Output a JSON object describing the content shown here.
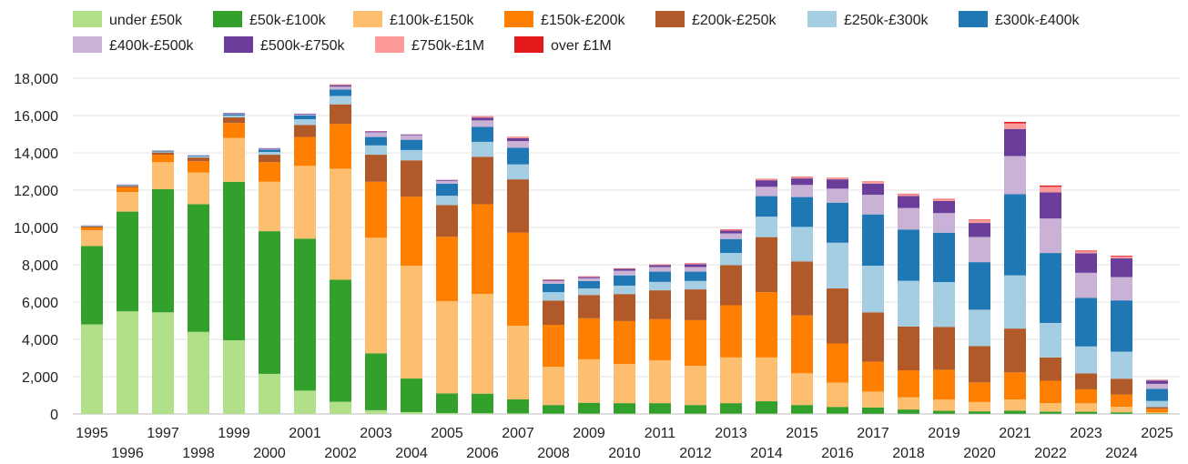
{
  "chart_data": {
    "type": "bar",
    "stacked": true,
    "title": "",
    "xlabel": "",
    "ylabel": "",
    "ylim": [
      0,
      18000
    ],
    "y_ticks": [
      0,
      2000,
      4000,
      6000,
      8000,
      10000,
      12000,
      14000,
      16000,
      18000
    ],
    "y_tick_labels": [
      "0",
      "2,000",
      "4,000",
      "6,000",
      "8,000",
      "10,000",
      "12,000",
      "14,000",
      "16,000",
      "18,000"
    ],
    "grid": true,
    "legend_position": "top-left",
    "categories": [
      "1995",
      "1996",
      "1997",
      "1998",
      "1999",
      "2000",
      "2001",
      "2002",
      "2003",
      "2004",
      "2005",
      "2006",
      "2007",
      "2008",
      "2009",
      "2010",
      "2011",
      "2012",
      "2013",
      "2014",
      "2015",
      "2016",
      "2017",
      "2018",
      "2019",
      "2020",
      "2021",
      "2022",
      "2023",
      "2024",
      "2025"
    ],
    "series": [
      {
        "name": "under £50k",
        "color": "#b2df8a",
        "values": [
          4800,
          5500,
          5450,
          4400,
          3950,
          2150,
          1250,
          650,
          200,
          100,
          50,
          40,
          30,
          20,
          20,
          20,
          20,
          20,
          20,
          20,
          20,
          20,
          10,
          10,
          10,
          10,
          10,
          10,
          10,
          10,
          5
        ]
      },
      {
        "name": "£50k-£100k",
        "color": "#33a02c",
        "values": [
          4200,
          5350,
          6600,
          6850,
          8500,
          7650,
          8150,
          6550,
          3050,
          1800,
          1050,
          1050,
          750,
          460,
          580,
          560,
          560,
          460,
          560,
          660,
          460,
          360,
          340,
          230,
          160,
          130,
          170,
          120,
          110,
          80,
          30
        ]
      },
      {
        "name": "£100k-£150k",
        "color": "#fdbf6f",
        "values": [
          850,
          1050,
          1450,
          1700,
          2350,
          2650,
          3900,
          5950,
          6200,
          6050,
          4950,
          5350,
          3950,
          2050,
          2330,
          2100,
          2300,
          2100,
          2450,
          2350,
          1700,
          1300,
          850,
          650,
          600,
          500,
          600,
          450,
          450,
          300,
          50
        ]
      },
      {
        "name": "£150k-£200k",
        "color": "#ff7f00",
        "values": [
          150,
          250,
          400,
          600,
          800,
          1050,
          1550,
          2400,
          3000,
          3700,
          3450,
          4800,
          5000,
          2250,
          2200,
          2300,
          2200,
          2450,
          2800,
          3500,
          3100,
          2100,
          1600,
          1450,
          1600,
          1050,
          1450,
          1200,
          750,
          650,
          200
        ]
      },
      {
        "name": "£200k-£250k",
        "color": "#b15928",
        "values": [
          50,
          70,
          120,
          200,
          300,
          400,
          650,
          1050,
          1450,
          1950,
          1700,
          2550,
          2850,
          1300,
          1250,
          1450,
          1550,
          1650,
          2150,
          2950,
          2900,
          2950,
          2650,
          2350,
          2300,
          1950,
          2350,
          1250,
          850,
          850,
          80
        ]
      },
      {
        "name": "£250k-£300k",
        "color": "#a6cee3",
        "values": [
          20,
          30,
          50,
          60,
          100,
          150,
          300,
          450,
          500,
          550,
          500,
          800,
          800,
          450,
          350,
          450,
          450,
          450,
          650,
          1100,
          1850,
          2450,
          2500,
          2450,
          2400,
          1950,
          2850,
          1850,
          1450,
          1450,
          330
        ]
      },
      {
        "name": "£300k-£400k",
        "color": "#1f78b4",
        "values": [
          20,
          30,
          40,
          40,
          70,
          120,
          200,
          350,
          450,
          550,
          650,
          800,
          900,
          450,
          400,
          550,
          550,
          500,
          750,
          1100,
          1600,
          2150,
          2750,
          2750,
          2650,
          2550,
          4350,
          3750,
          2600,
          2750,
          650
        ]
      },
      {
        "name": "£400k-£500k",
        "color": "#cab2d6",
        "values": [
          10,
          10,
          20,
          20,
          40,
          50,
          60,
          150,
          250,
          250,
          150,
          350,
          350,
          150,
          150,
          250,
          250,
          250,
          300,
          500,
          650,
          750,
          1050,
          1150,
          1050,
          1350,
          2050,
          1850,
          1350,
          1250,
          270
        ]
      },
      {
        "name": "£500k-£750k",
        "color": "#6a3d9a",
        "values": [
          10,
          10,
          10,
          10,
          30,
          30,
          40,
          80,
          50,
          40,
          50,
          150,
          150,
          40,
          60,
          100,
          100,
          150,
          150,
          350,
          350,
          500,
          600,
          650,
          650,
          750,
          1450,
          1400,
          1050,
          1000,
          180
        ]
      },
      {
        "name": "£750k-£1M",
        "color": "#fb9a99",
        "values": [
          0,
          0,
          0,
          0,
          0,
          0,
          0,
          50,
          20,
          10,
          10,
          50,
          50,
          20,
          30,
          20,
          30,
          50,
          50,
          50,
          50,
          60,
          100,
          100,
          80,
          150,
          300,
          300,
          100,
          100,
          30
        ]
      },
      {
        "name": "over £1M",
        "color": "#e31a1c",
        "values": [
          0,
          0,
          0,
          0,
          0,
          0,
          0,
          0,
          0,
          0,
          0,
          20,
          20,
          20,
          10,
          10,
          10,
          10,
          20,
          20,
          30,
          20,
          20,
          20,
          30,
          30,
          80,
          70,
          40,
          40,
          10
        ]
      }
    ]
  }
}
